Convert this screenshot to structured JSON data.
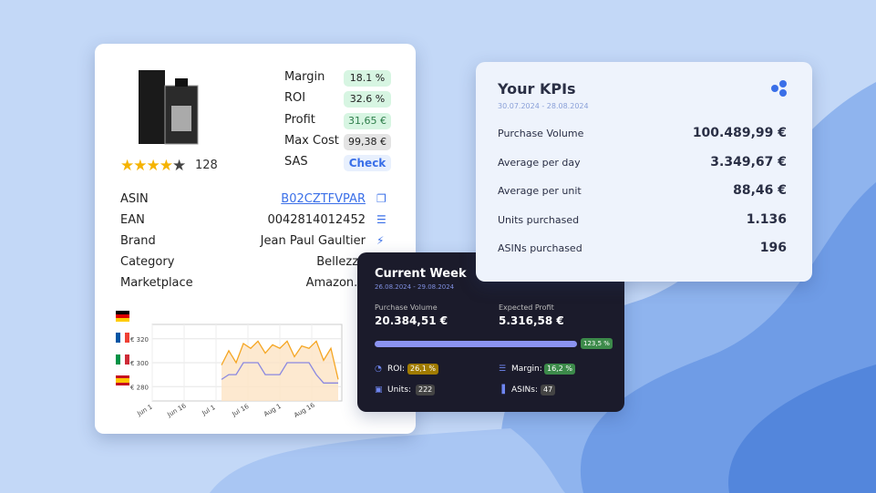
{
  "product": {
    "stars": 4,
    "reviews": "128",
    "metrics": [
      {
        "label": "Margin",
        "value": "18.1 %"
      },
      {
        "label": "ROI",
        "value": "32.6 %"
      },
      {
        "label": "Profit",
        "value": "31,65 €"
      },
      {
        "label": "Max Cost",
        "value": "99,38 €"
      },
      {
        "label": "SAS",
        "value": "Check"
      }
    ],
    "details": [
      {
        "label": "ASIN",
        "value": "B02CZTFVPAR"
      },
      {
        "label": "EAN",
        "value": "0042814012452"
      },
      {
        "label": "Brand",
        "value": "Jean Paul Gaultier"
      },
      {
        "label": "Category",
        "value": "Bellezza"
      },
      {
        "label": "Marketplace",
        "value": "Amazon.it"
      }
    ]
  },
  "price_chart": {
    "ylim": [
      268,
      332
    ],
    "yticks": [
      {
        "value": 320,
        "label": "€ 320"
      },
      {
        "value": 300,
        "label": "€ 300"
      },
      {
        "value": 280,
        "label": "€ 280"
      }
    ],
    "xtick_labels": [
      "Jun 1",
      "Jun 16",
      "Jul 1",
      "Jul 16",
      "Aug 1",
      "Aug 16"
    ],
    "series": [
      {
        "color": "#f5a623",
        "values": [
          null,
          null,
          null,
          null,
          null,
          null,
          null,
          null,
          null,
          298,
          310,
          300,
          316,
          312,
          318,
          308,
          315,
          312,
          318,
          305,
          314,
          312,
          318,
          302,
          312,
          286
        ]
      },
      {
        "color": "#8a88e0",
        "values": [
          null,
          null,
          null,
          null,
          null,
          null,
          null,
          null,
          null,
          286,
          290,
          290,
          300,
          300,
          300,
          290,
          290,
          290,
          300,
          300,
          300,
          300,
          290,
          283,
          283,
          283
        ]
      }
    ]
  },
  "kpis": {
    "title": "Your KPIs",
    "period": "30.07.2024 - 28.08.2024",
    "rows": [
      {
        "label": "Purchase Volume",
        "value": "100.489,99 €"
      },
      {
        "label": "Average per day",
        "value": "3.349,67 €"
      },
      {
        "label": "Average per unit",
        "value": "88,46 €"
      },
      {
        "label": "Units purchased",
        "value": "1.136"
      },
      {
        "label": "ASINs purchased",
        "value": "196"
      }
    ]
  },
  "current_week": {
    "title": "Current Week",
    "period": "26.08.2024 - 29.08.2024",
    "purchase_label": "Purchase Volume",
    "purchase_value": "20.384,51 €",
    "profit_label": "Expected Profit",
    "profit_value": "5.316,58 €",
    "progress": "123,5 %",
    "stats": [
      {
        "label": "ROI:",
        "value": "26,1 %"
      },
      {
        "label": "Margin:",
        "value": "16,2 %"
      },
      {
        "label": "Units:",
        "value": "222"
      },
      {
        "label": "ASINs:",
        "value": "47"
      }
    ]
  }
}
